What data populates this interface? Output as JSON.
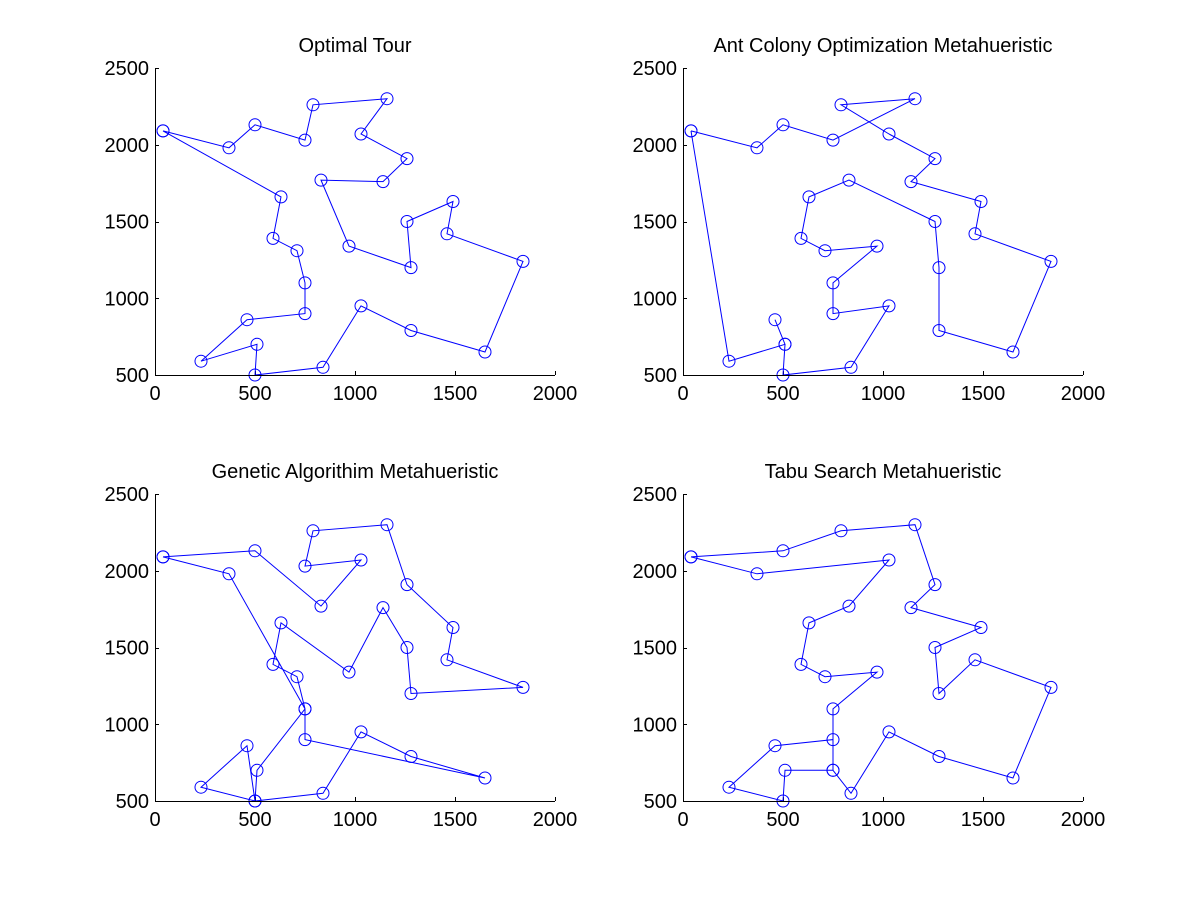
{
  "colors": {
    "series": "#0000ff",
    "axis": "#000000",
    "background": "#ffffff"
  },
  "chart_data": [
    {
      "type": "line",
      "title": "Optimal Tour",
      "xlabel": "",
      "ylabel": "",
      "xlim": [
        0,
        2000
      ],
      "ylim": [
        500,
        2500
      ],
      "xticks": [
        0,
        500,
        1000,
        1500,
        2000
      ],
      "yticks": [
        500,
        1000,
        1500,
        2000,
        2500
      ],
      "marker": "circle",
      "grid": false,
      "series": [
        {
          "x": [
            40,
            370,
            500,
            750,
            790,
            1160,
            1030,
            1260,
            1140,
            830,
            970,
            1280,
            1260,
            1490,
            1460,
            1840,
            1650,
            1280,
            1030,
            840,
            500,
            510,
            230,
            460,
            750,
            750,
            710,
            590,
            630,
            40
          ],
          "y": [
            2090,
            1980,
            2130,
            2030,
            2260,
            2300,
            2070,
            1910,
            1760,
            1770,
            1340,
            1200,
            1500,
            1630,
            1420,
            1240,
            650,
            790,
            950,
            550,
            500,
            700,
            590,
            860,
            900,
            1100,
            1310,
            1390,
            1660,
            2090
          ]
        }
      ]
    },
    {
      "type": "line",
      "title": "Ant Colony Optimization Metahueristic",
      "xlabel": "",
      "ylabel": "",
      "xlim": [
        0,
        2000
      ],
      "ylim": [
        500,
        2500
      ],
      "xticks": [
        0,
        500,
        1000,
        1500,
        2000
      ],
      "yticks": [
        500,
        1000,
        1500,
        2000,
        2500
      ],
      "marker": "circle",
      "grid": false,
      "series": [
        {
          "x": [
            40,
            370,
            500,
            750,
            1160,
            790,
            1030,
            1260,
            1140,
            1490,
            1460,
            1840,
            1650,
            1280,
            1280,
            1260,
            830,
            630,
            590,
            710,
            970,
            750,
            750,
            1030,
            840,
            500,
            510,
            460,
            510,
            230,
            40
          ],
          "y": [
            2090,
            1980,
            2130,
            2030,
            2300,
            2260,
            2070,
            1910,
            1760,
            1630,
            1420,
            1240,
            650,
            790,
            1200,
            1500,
            1770,
            1660,
            1390,
            1310,
            1340,
            1100,
            900,
            950,
            550,
            500,
            700,
            860,
            700,
            590,
            2090
          ]
        }
      ]
    },
    {
      "type": "line",
      "title": "Genetic Algorithim Metahueristic",
      "xlabel": "",
      "ylabel": "",
      "xlim": [
        0,
        2000
      ],
      "ylim": [
        500,
        2500
      ],
      "xticks": [
        0,
        500,
        1000,
        1500,
        2000
      ],
      "yticks": [
        500,
        1000,
        1500,
        2000,
        2500
      ],
      "marker": "circle",
      "grid": false,
      "series": [
        {
          "x": [
            40,
            500,
            830,
            1030,
            750,
            790,
            1160,
            1260,
            1490,
            1460,
            1840,
            1280,
            1260,
            1140,
            970,
            630,
            590,
            710,
            750,
            510,
            500,
            460,
            230,
            500,
            840,
            1030,
            1280,
            1650,
            750,
            750,
            370,
            40
          ],
          "y": [
            2090,
            2130,
            1770,
            2070,
            2030,
            2260,
            2300,
            1910,
            1630,
            1420,
            1240,
            1200,
            1500,
            1760,
            1340,
            1660,
            1390,
            1310,
            1100,
            700,
            500,
            860,
            590,
            500,
            550,
            950,
            790,
            650,
            900,
            1100,
            1980,
            2090
          ]
        }
      ]
    },
    {
      "type": "line",
      "title": "Tabu Search Metahueristic",
      "xlabel": "",
      "ylabel": "",
      "xlim": [
        0,
        2000
      ],
      "ylim": [
        500,
        2500
      ],
      "xticks": [
        0,
        500,
        1000,
        1500,
        2000
      ],
      "yticks": [
        500,
        1000,
        1500,
        2000,
        2500
      ],
      "marker": "circle",
      "grid": false,
      "series": [
        {
          "x": [
            40,
            500,
            790,
            1160,
            1260,
            1140,
            1490,
            1260,
            1280,
            1460,
            1840,
            1650,
            1280,
            1030,
            840,
            750,
            750,
            460,
            230,
            500,
            510,
            750,
            750,
            970,
            710,
            590,
            630,
            830,
            1030,
            370,
            40
          ],
          "y": [
            2090,
            2130,
            2260,
            2300,
            1910,
            1760,
            1630,
            1500,
            1200,
            1420,
            1240,
            650,
            790,
            950,
            550,
            700,
            900,
            860,
            590,
            500,
            700,
            700,
            1100,
            1340,
            1310,
            1390,
            1660,
            1770,
            2070,
            1980,
            2090
          ]
        }
      ]
    }
  ]
}
